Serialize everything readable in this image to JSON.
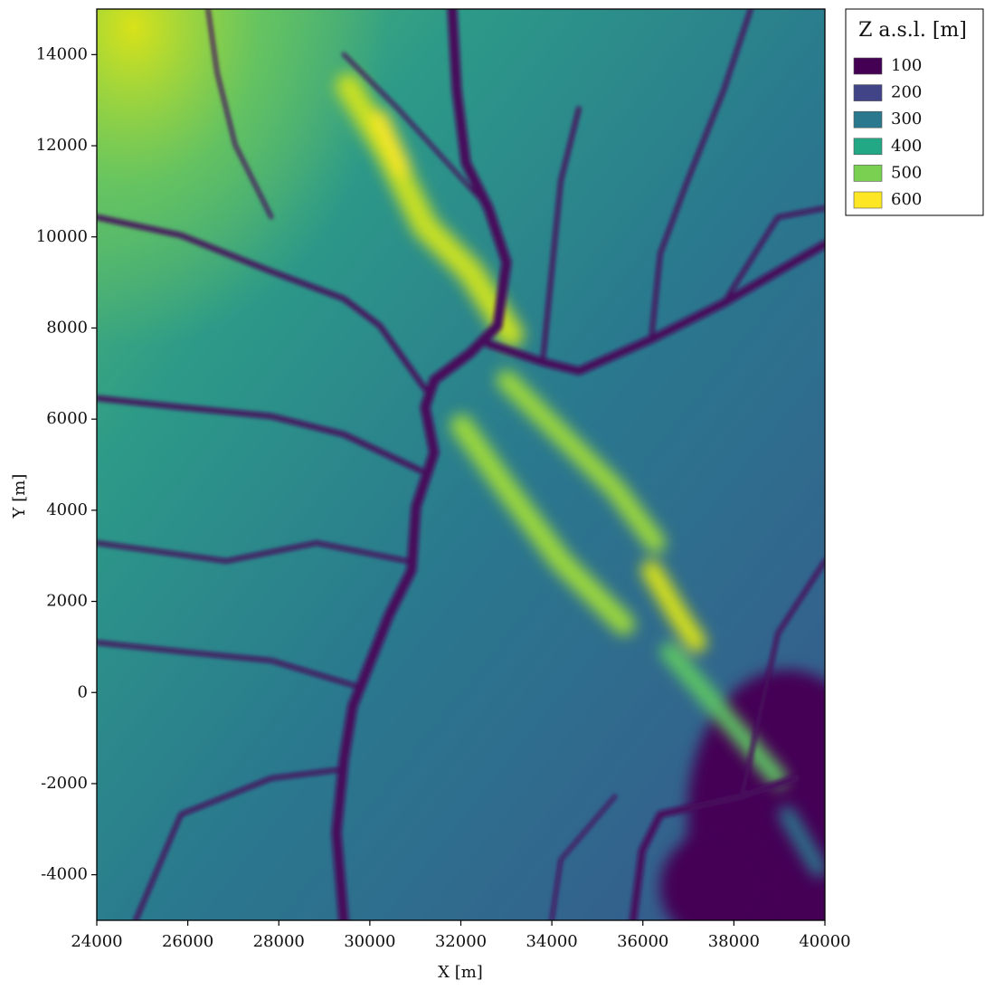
{
  "chart_data": {
    "type": "heatmap",
    "x_label": "X [m]",
    "y_label": "Y [m]",
    "xlim": [
      24000,
      40000
    ],
    "ylim": [
      -5000,
      15000
    ],
    "xticks": [
      24000,
      26000,
      28000,
      30000,
      32000,
      34000,
      36000,
      38000,
      40000
    ],
    "yticks": [
      -4000,
      -2000,
      0,
      2000,
      4000,
      6000,
      8000,
      10000,
      12000,
      14000
    ],
    "legend": {
      "title": "Z a.s.l. [m]",
      "position": "outside upper right",
      "entries": [
        {
          "label": 100,
          "color": "#440154"
        },
        {
          "label": 200,
          "color": "#414487"
        },
        {
          "label": 300,
          "color": "#2a788e"
        },
        {
          "label": 400,
          "color": "#22a884"
        },
        {
          "label": 500,
          "color": "#7ad151"
        },
        {
          "label": 600,
          "color": "#fde725"
        }
      ]
    }
  }
}
